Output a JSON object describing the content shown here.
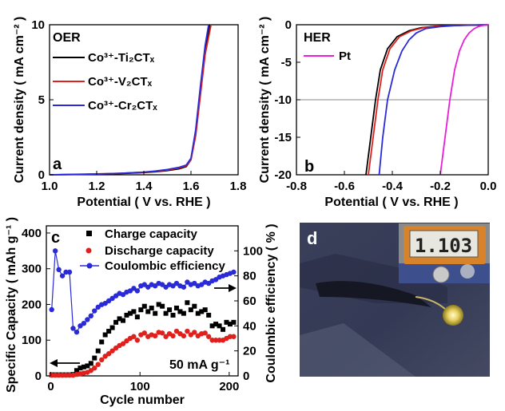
{
  "chart_data": [
    {
      "panel": "a",
      "type": "line",
      "title": "OER",
      "xlabel": "Potential ( V vs. RHE )",
      "ylabel": "Current density ( mA cm⁻² )",
      "xlim": [
        1.0,
        1.8
      ],
      "ylim": [
        0,
        10
      ],
      "xticks": [
        "1.0",
        "1.2",
        "1.4",
        "1.6",
        "1.8"
      ],
      "yticks": [
        "0",
        "5",
        "10"
      ],
      "legend": "top-left",
      "series": [
        {
          "name": "Co³⁺-Ti₂CTₓ",
          "color": "#000000",
          "x": [
            1.0,
            1.1,
            1.2,
            1.3,
            1.4,
            1.45,
            1.5,
            1.55,
            1.58,
            1.6,
            1.62,
            1.64,
            1.66,
            1.68
          ],
          "y": [
            0.0,
            0.02,
            0.04,
            0.08,
            0.15,
            0.2,
            0.28,
            0.4,
            0.55,
            1.0,
            2.8,
            5.6,
            8.3,
            10
          ]
        },
        {
          "name": "Co³⁺-V₂CTₓ",
          "color": "#e0201c",
          "x": [
            1.0,
            1.1,
            1.2,
            1.3,
            1.4,
            1.45,
            1.5,
            1.55,
            1.58,
            1.6,
            1.62,
            1.64,
            1.66,
            1.685
          ],
          "y": [
            0.0,
            0.03,
            0.06,
            0.1,
            0.17,
            0.23,
            0.32,
            0.45,
            0.6,
            1.0,
            2.6,
            5.3,
            8.0,
            10
          ]
        },
        {
          "name": "Co³⁺-Cr₂CTₓ",
          "color": "#2a2ad8",
          "x": [
            1.0,
            1.1,
            1.2,
            1.3,
            1.4,
            1.45,
            1.5,
            1.55,
            1.58,
            1.6,
            1.62,
            1.64,
            1.66,
            1.675
          ],
          "y": [
            0.0,
            0.02,
            0.05,
            0.1,
            0.18,
            0.25,
            0.35,
            0.5,
            0.65,
            1.1,
            3.0,
            5.9,
            8.6,
            10
          ]
        }
      ]
    },
    {
      "panel": "b",
      "type": "line",
      "title": "HER",
      "xlabel": "Potential ( V vs. RHE )",
      "ylabel": "Current density ( mA cm⁻² )",
      "xlim": [
        -0.8,
        0.0
      ],
      "ylim": [
        -20,
        0
      ],
      "xticks": [
        "-0.8",
        "-0.6",
        "-0.4",
        "-0.2",
        "0.0"
      ],
      "yticks": [
        "0",
        "-5",
        "-10",
        "-15",
        "-20"
      ],
      "reference_line_y": -10,
      "legend": "top-left",
      "series": [
        {
          "name": "Co³⁺-Ti₂CTₓ",
          "color": "#000000",
          "x": [
            -0.51,
            -0.49,
            -0.47,
            -0.45,
            -0.42,
            -0.38,
            -0.33,
            -0.28,
            -0.22,
            -0.15,
            -0.08,
            0.0
          ],
          "y": [
            -20,
            -15,
            -10,
            -6,
            -3.2,
            -1.6,
            -0.8,
            -0.4,
            -0.2,
            -0.1,
            -0.05,
            -0.02
          ]
        },
        {
          "name": "Co³⁺-V₂CTₓ",
          "color": "#e0201c",
          "x": [
            -0.5,
            -0.48,
            -0.46,
            -0.44,
            -0.41,
            -0.37,
            -0.32,
            -0.27,
            -0.21,
            -0.15,
            -0.08,
            0.0
          ],
          "y": [
            -20,
            -15,
            -10,
            -6,
            -3.2,
            -1.6,
            -0.8,
            -0.4,
            -0.2,
            -0.1,
            -0.05,
            -0.02
          ]
        },
        {
          "name": "Co³⁺-Cr₂CTₓ",
          "color": "#2a2ad8",
          "x": [
            -0.455,
            -0.44,
            -0.42,
            -0.39,
            -0.36,
            -0.33,
            -0.3,
            -0.26,
            -0.2,
            -0.14,
            -0.07,
            0.0
          ],
          "y": [
            -20,
            -15,
            -10,
            -6,
            -3.5,
            -2.0,
            -1.1,
            -0.5,
            -0.25,
            -0.12,
            -0.05,
            -0.02
          ]
        },
        {
          "name": "Pt",
          "color": "#e81ed8",
          "x": [
            -0.2,
            -0.18,
            -0.16,
            -0.14,
            -0.12,
            -0.1,
            -0.08,
            -0.06,
            -0.045,
            -0.03,
            -0.015,
            0.0
          ],
          "y": [
            -20,
            -15,
            -10,
            -6,
            -3.5,
            -2.0,
            -1.1,
            -0.55,
            -0.3,
            -0.15,
            -0.06,
            -0.02
          ]
        }
      ]
    },
    {
      "panel": "c",
      "type": "scatter",
      "xlabel": "Cycle number",
      "ylabel": "Specific Capacity ( mAh g⁻¹ )",
      "y2label": "Coulombic efficiency ( % )",
      "xlim": [
        -5,
        210
      ],
      "ylim": [
        0,
        420
      ],
      "y2lim": [
        0,
        120
      ],
      "xticks": [
        "0",
        "100",
        "200"
      ],
      "yticks": [
        "0",
        "100",
        "200",
        "300",
        "400"
      ],
      "y2ticks": [
        "0",
        "20",
        "40",
        "60",
        "80",
        "100"
      ],
      "annotation": "50 mA g⁻¹",
      "legend": "top-right",
      "series": [
        {
          "name": "Charge capacity",
          "color": "#000000",
          "marker": "square",
          "x": [
            1,
            5,
            9,
            13,
            17,
            21,
            25,
            29,
            33,
            37,
            41,
            45,
            49,
            53,
            57,
            61,
            65,
            69,
            73,
            77,
            81,
            85,
            89,
            93,
            97,
            101,
            105,
            109,
            113,
            117,
            121,
            125,
            129,
            133,
            137,
            141,
            145,
            149,
            153,
            157,
            161,
            165,
            169,
            173,
            177,
            181,
            185,
            189,
            193,
            197,
            201,
            205
          ],
          "y": [
            3,
            3,
            3,
            3,
            3,
            3,
            4,
            15,
            22,
            25,
            28,
            35,
            50,
            70,
            95,
            115,
            125,
            135,
            150,
            160,
            155,
            170,
            175,
            180,
            165,
            185,
            195,
            180,
            190,
            175,
            200,
            195,
            175,
            185,
            170,
            190,
            180,
            175,
            205,
            185,
            195,
            175,
            180,
            185,
            170,
            140,
            145,
            140,
            130,
            150,
            145,
            150
          ]
        },
        {
          "name": "Discharge capacity",
          "color": "#e0201c",
          "marker": "circle",
          "x": [
            1,
            5,
            9,
            13,
            17,
            21,
            25,
            29,
            33,
            37,
            41,
            45,
            49,
            53,
            57,
            61,
            65,
            69,
            73,
            77,
            81,
            85,
            89,
            93,
            97,
            101,
            105,
            109,
            113,
            117,
            121,
            125,
            129,
            133,
            137,
            141,
            145,
            149,
            153,
            157,
            161,
            165,
            169,
            173,
            177,
            181,
            185,
            189,
            193,
            197,
            201,
            205
          ],
          "y": [
            2,
            2,
            2,
            2,
            2,
            2,
            2,
            4,
            6,
            8,
            10,
            15,
            22,
            32,
            45,
            55,
            62,
            70,
            78,
            85,
            90,
            98,
            105,
            110,
            100,
            115,
            120,
            110,
            115,
            112,
            122,
            120,
            110,
            118,
            112,
            125,
            118,
            112,
            125,
            115,
            122,
            112,
            118,
            120,
            110,
            100,
            100,
            100,
            100,
            105,
            110,
            110
          ]
        },
        {
          "name": "Coulombic efficiency",
          "color": "#2a2ad8",
          "marker": "circle-line",
          "x": [
            1,
            5,
            9,
            13,
            17,
            21,
            25,
            29,
            33,
            37,
            41,
            45,
            49,
            53,
            57,
            61,
            65,
            69,
            73,
            77,
            81,
            85,
            89,
            93,
            97,
            101,
            105,
            109,
            113,
            117,
            121,
            125,
            129,
            133,
            137,
            141,
            145,
            149,
            153,
            157,
            161,
            165,
            169,
            173,
            177,
            181,
            185,
            189,
            193,
            197,
            201,
            205
          ],
          "y": [
            53,
            100,
            85,
            80,
            83,
            83,
            38,
            35,
            40,
            42,
            45,
            48,
            52,
            55,
            57,
            58,
            60,
            62,
            64,
            66,
            65,
            67,
            68,
            70,
            68,
            72,
            73,
            71,
            73,
            72,
            74,
            73,
            71,
            73,
            72,
            74,
            72,
            71,
            75,
            73,
            74,
            72,
            73,
            75,
            74,
            76,
            77,
            79,
            80,
            81,
            82,
            83
          ]
        }
      ]
    },
    {
      "panel": "d",
      "type": "photo",
      "meter_reading": "1.103"
    }
  ],
  "panels": {
    "a": {
      "label": "a",
      "title": "OER",
      "legend": [
        "Co³⁺-Ti₂CTₓ",
        "Co³⁺-V₂CTₓ",
        "Co³⁺-Cr₂CTₓ"
      ]
    },
    "b": {
      "label": "b",
      "title": "HER",
      "legend": [
        "Pt"
      ]
    },
    "c": {
      "label": "c",
      "annotation": "50 mA g⁻¹",
      "legend": [
        "Charge capacity",
        "Discharge capacity",
        "Coulombic efficiency"
      ]
    },
    "d": {
      "label": "d",
      "meter_reading": "1.103"
    }
  }
}
